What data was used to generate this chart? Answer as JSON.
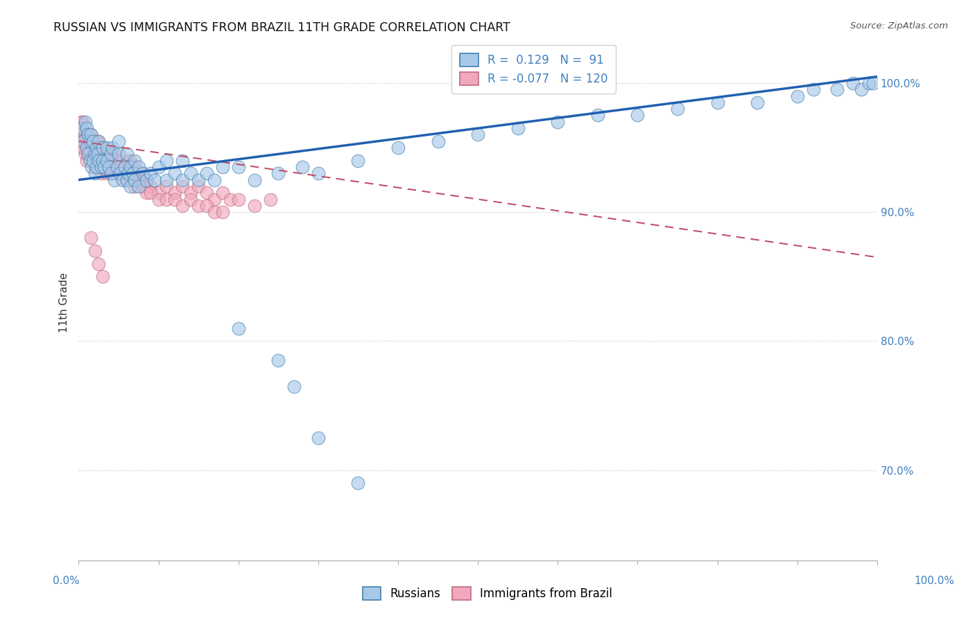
{
  "title": "RUSSIAN VS IMMIGRANTS FROM BRAZIL 11TH GRADE CORRELATION CHART",
  "source": "Source: ZipAtlas.com",
  "R_blue": 0.129,
  "N_blue": 91,
  "R_pink": -0.077,
  "N_pink": 120,
  "blue_face": "#A8C8E8",
  "blue_edge": "#4080B0",
  "pink_face": "#F0A8BC",
  "pink_edge": "#C06880",
  "trend_blue_color": "#2060B0",
  "trend_pink_color": "#C05068",
  "grid_color": "#c8c8c8",
  "axis_label_color": "#4080C0",
  "title_color": "#111111",
  "background": "#ffffff",
  "xlim": [
    0,
    100
  ],
  "ylim": [
    63,
    103
  ],
  "blue_trend_x": [
    0,
    100
  ],
  "blue_trend_y": [
    92.5,
    100.5
  ],
  "pink_trend_x": [
    0,
    100
  ],
  "pink_trend_y": [
    95.5,
    86.5
  ],
  "russians_x": [
    0.4,
    0.6,
    0.8,
    1.0,
    1.0,
    1.2,
    1.2,
    1.4,
    1.4,
    1.5,
    1.6,
    1.8,
    1.8,
    2.0,
    2.0,
    2.2,
    2.2,
    2.4,
    2.5,
    2.5,
    2.8,
    3.0,
    3.0,
    3.2,
    3.5,
    3.5,
    3.8,
    4.0,
    4.0,
    4.2,
    4.5,
    4.8,
    5.0,
    5.0,
    5.2,
    5.5,
    5.8,
    6.0,
    6.0,
    6.2,
    6.5,
    6.5,
    6.8,
    7.0,
    7.0,
    7.5,
    7.5,
    8.0,
    8.5,
    9.0,
    9.5,
    10.0,
    11.0,
    11.0,
    12.0,
    13.0,
    13.0,
    14.0,
    15.0,
    16.0,
    17.0,
    18.0,
    20.0,
    22.0,
    25.0,
    28.0,
    30.0,
    35.0,
    40.0,
    45.0,
    50.0,
    55.0,
    60.0,
    65.0,
    70.0,
    75.0,
    80.0,
    85.0,
    90.0,
    92.0,
    95.0,
    97.0,
    98.0,
    99.0,
    99.5,
    20.0,
    25.0,
    27.0,
    30.0,
    35.0
  ],
  "russians_y": [
    96.5,
    95.5,
    97.0,
    95.0,
    96.5,
    94.5,
    96.0,
    95.5,
    94.0,
    96.0,
    93.5,
    95.5,
    94.0,
    94.5,
    93.0,
    95.0,
    93.5,
    94.5,
    95.5,
    94.0,
    93.5,
    94.0,
    95.0,
    93.5,
    95.0,
    94.0,
    93.5,
    94.5,
    93.0,
    95.0,
    92.5,
    93.5,
    94.5,
    95.5,
    93.0,
    92.5,
    93.5,
    94.5,
    92.5,
    93.0,
    92.0,
    93.5,
    93.0,
    94.0,
    92.5,
    93.5,
    92.0,
    93.0,
    92.5,
    93.0,
    92.5,
    93.5,
    92.5,
    94.0,
    93.0,
    92.5,
    94.0,
    93.0,
    92.5,
    93.0,
    92.5,
    93.5,
    93.5,
    92.5,
    93.0,
    93.5,
    93.0,
    94.0,
    95.0,
    95.5,
    96.0,
    96.5,
    97.0,
    97.5,
    97.5,
    98.0,
    98.5,
    98.5,
    99.0,
    99.5,
    99.5,
    100.0,
    99.5,
    100.0,
    100.0,
    81.0,
    78.5,
    76.5,
    72.5,
    69.0
  ],
  "brazil_x": [
    0.2,
    0.3,
    0.4,
    0.5,
    0.5,
    0.7,
    0.8,
    0.9,
    1.0,
    1.0,
    1.1,
    1.2,
    1.2,
    1.3,
    1.4,
    1.5,
    1.5,
    1.6,
    1.7,
    1.8,
    1.8,
    1.9,
    2.0,
    2.0,
    2.1,
    2.2,
    2.2,
    2.3,
    2.4,
    2.5,
    2.5,
    2.6,
    2.8,
    2.8,
    3.0,
    3.0,
    3.1,
    3.2,
    3.3,
    3.4,
    3.5,
    3.5,
    3.7,
    3.8,
    4.0,
    4.0,
    4.2,
    4.3,
    4.5,
    4.5,
    4.7,
    5.0,
    5.0,
    5.2,
    5.5,
    5.8,
    6.0,
    6.0,
    6.2,
    6.5,
    6.5,
    6.8,
    7.0,
    7.0,
    7.5,
    8.0,
    8.5,
    9.0,
    10.0,
    11.0,
    12.0,
    13.0,
    14.0,
    15.0,
    16.0,
    17.0,
    18.0,
    19.0,
    20.0,
    22.0,
    24.0,
    0.3,
    0.5,
    0.7,
    1.0,
    1.2,
    1.4,
    1.6,
    1.9,
    2.1,
    2.4,
    2.7,
    3.0,
    3.3,
    3.6,
    4.0,
    4.3,
    4.6,
    5.0,
    5.3,
    5.6,
    5.9,
    6.2,
    6.5,
    6.8,
    7.1,
    7.5,
    8.0,
    8.5,
    9.0,
    10.0,
    11.0,
    12.0,
    13.0,
    14.0,
    15.0,
    16.0,
    17.0,
    18.0,
    1.5,
    2.0,
    2.5,
    3.0
  ],
  "brazil_y": [
    96.0,
    97.0,
    95.5,
    95.0,
    97.0,
    95.5,
    94.5,
    96.0,
    95.5,
    94.0,
    96.0,
    94.5,
    95.5,
    95.0,
    94.5,
    95.0,
    96.0,
    94.5,
    95.5,
    94.0,
    95.5,
    94.5,
    95.0,
    93.5,
    95.0,
    94.5,
    93.5,
    95.5,
    94.0,
    95.5,
    93.5,
    94.5,
    94.5,
    93.0,
    95.0,
    93.5,
    94.5,
    93.5,
    94.5,
    93.5,
    94.5,
    93.0,
    94.0,
    93.5,
    94.5,
    93.0,
    94.0,
    93.0,
    93.5,
    94.5,
    93.0,
    94.0,
    93.5,
    93.0,
    93.5,
    93.0,
    94.0,
    92.5,
    93.5,
    93.0,
    94.0,
    92.5,
    93.5,
    92.0,
    92.5,
    93.0,
    92.5,
    92.0,
    91.5,
    92.0,
    91.5,
    92.0,
    91.5,
    92.0,
    91.5,
    91.0,
    91.5,
    91.0,
    91.0,
    90.5,
    91.0,
    95.5,
    95.0,
    96.0,
    95.5,
    95.0,
    95.5,
    95.0,
    94.5,
    95.0,
    94.5,
    95.0,
    94.5,
    94.5,
    94.0,
    94.0,
    93.5,
    94.0,
    93.5,
    93.5,
    93.0,
    93.5,
    93.0,
    92.5,
    93.0,
    92.5,
    92.5,
    92.0,
    91.5,
    91.5,
    91.0,
    91.0,
    91.0,
    90.5,
    91.0,
    90.5,
    90.5,
    90.0,
    90.0,
    88.0,
    87.0,
    86.0,
    85.0
  ]
}
